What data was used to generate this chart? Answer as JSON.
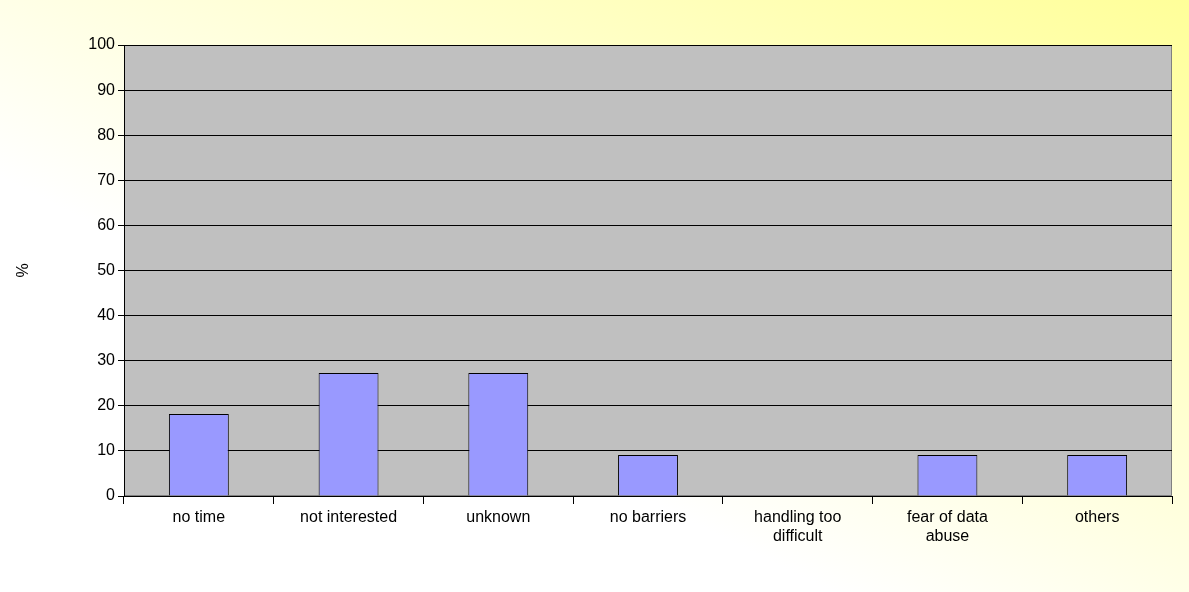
{
  "chart_data": {
    "type": "bar",
    "ylabel": "%",
    "categories": [
      "no time",
      "not interested",
      "unknown",
      "no barriers",
      "handling too difficult",
      "fear of data abuse",
      "others"
    ],
    "values": [
      18.2,
      27.3,
      27.3,
      9.1,
      0,
      9.1,
      9.1
    ],
    "color": "#9999ff",
    "ylim": [
      0,
      100
    ],
    "yticks": [
      0,
      10,
      20,
      30,
      40,
      50,
      60,
      70,
      80,
      90,
      100
    ],
    "grid": "y",
    "legend": false
  }
}
